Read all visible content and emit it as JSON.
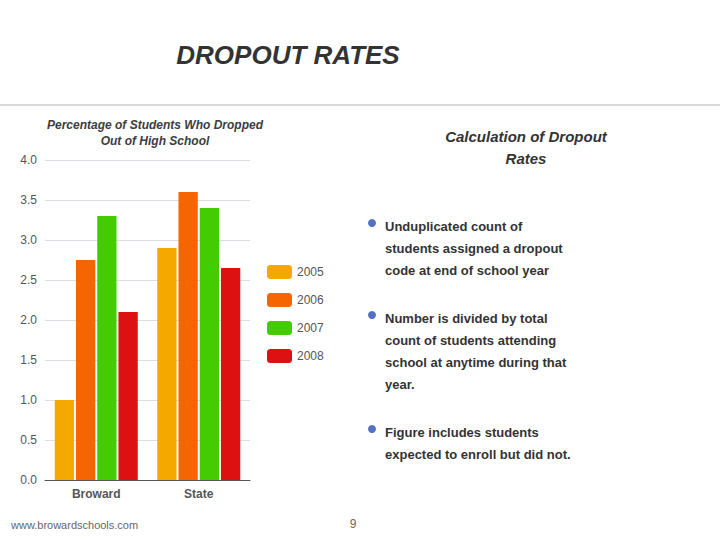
{
  "chart_data": {
    "type": "bar",
    "title": "Percentage of Students Who Dropped\nOut of High School",
    "categories": [
      "Broward",
      "State"
    ],
    "series": [
      {
        "name": "2005",
        "color": "#f5a800",
        "values": [
          1.0,
          2.9
        ]
      },
      {
        "name": "2006",
        "color": "#f56600",
        "values": [
          2.75,
          3.6
        ]
      },
      {
        "name": "2007",
        "color": "#44cc00",
        "values": [
          3.3,
          3.4
        ]
      },
      {
        "name": "2008",
        "color": "#dd1111",
        "values": [
          2.1,
          2.65
        ]
      }
    ],
    "ylim": [
      0,
      4
    ],
    "yticks": [
      {
        "value": 0,
        "label": "0.0"
      },
      0.5,
      {
        "value": 1.0,
        "label": "1.0"
      },
      1.5,
      {
        "value": 2.0,
        "label": "2.0"
      },
      2.5,
      {
        "value": 3.0,
        "label": "3.0"
      },
      3.5,
      {
        "value": 4.0,
        "label": "4.0"
      }
    ],
    "grid": true,
    "legend": "right",
    "annotations": [
      "DROPOUT RATES",
      "Calculation of Dropout\nRates",
      "Unduplicated count of\nstudents assigned a dropout\ncode at end of school year",
      "Number is divided by total\ncount of students attending\nschool at anytime during that\nyear.",
      "Figure includes students\nexpected to enroll but did not.",
      "www.browardschools.com",
      "9"
    ]
  }
}
